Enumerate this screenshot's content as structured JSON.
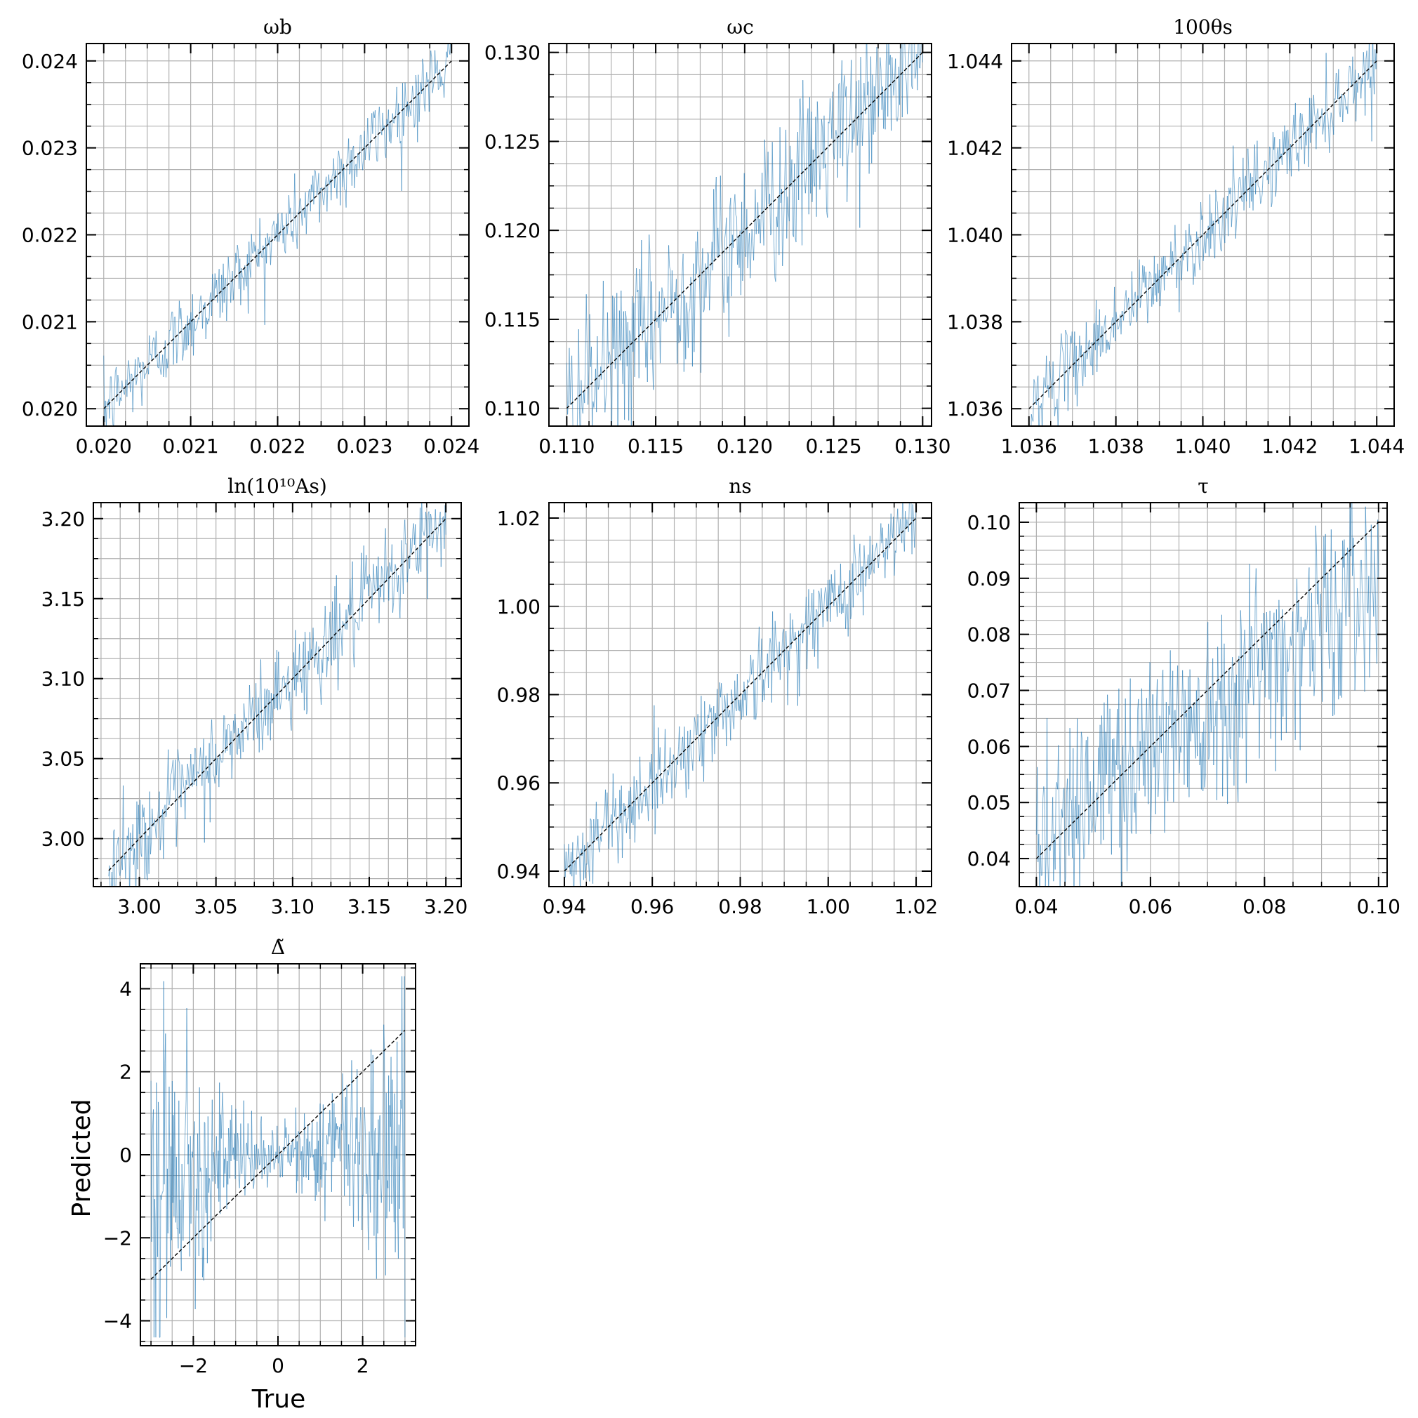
{
  "figure": {
    "xlabel": "True",
    "ylabel": "Predicted",
    "colors": {
      "series": "#1f77b4",
      "identity": "#000000",
      "grid": "#b0b0b0"
    }
  },
  "chart_data": [
    {
      "type": "scatter",
      "title": "ωb",
      "xlim": [
        0.0198,
        0.0242
      ],
      "ylim": [
        0.0198,
        0.0242
      ],
      "xticks": [
        "0.020",
        "0.021",
        "0.022",
        "0.023",
        "0.024"
      ],
      "yticks": [
        "0.020",
        "0.021",
        "0.022",
        "0.023",
        "0.024"
      ],
      "tick_values": [
        0.02,
        0.021,
        0.022,
        0.023,
        0.024
      ],
      "range": [
        0.02,
        0.024
      ],
      "scatter": 0.00022,
      "grid": true,
      "series": [
        {
          "name": "",
          "pattern": "noisy predictions about identity line"
        }
      ]
    },
    {
      "type": "scatter",
      "title": "ωc",
      "xlim": [
        0.109,
        0.1305
      ],
      "ylim": [
        0.109,
        0.1305
      ],
      "xticks": [
        "0.110",
        "0.115",
        "0.120",
        "0.125",
        "0.130"
      ],
      "yticks": [
        "0.110",
        "0.115",
        "0.120",
        "0.125",
        "0.130"
      ],
      "tick_values": [
        0.11,
        0.115,
        0.12,
        0.125,
        0.13
      ],
      "range": [
        0.11,
        0.13
      ],
      "scatter": 0.0022,
      "grid": true,
      "series": [
        {
          "name": "",
          "pattern": "noisy predictions about identity line"
        }
      ]
    },
    {
      "type": "scatter",
      "title": "100θs",
      "xlim": [
        1.0356,
        1.0444
      ],
      "ylim": [
        1.0356,
        1.0444
      ],
      "xticks": [
        "1.036",
        "1.038",
        "1.040",
        "1.042",
        "1.044"
      ],
      "yticks": [
        "1.036",
        "1.038",
        "1.040",
        "1.042",
        "1.044"
      ],
      "tick_values": [
        1.036,
        1.038,
        1.04,
        1.042,
        1.044
      ],
      "range": [
        1.036,
        1.044
      ],
      "scatter": 0.00045,
      "grid": true,
      "series": [
        {
          "name": "",
          "pattern": "noisy predictions about identity line"
        }
      ]
    },
    {
      "type": "scatter",
      "title": "ln(10¹⁰As)",
      "xlim": [
        2.97,
        3.21
      ],
      "ylim": [
        2.97,
        3.21
      ],
      "xticks": [
        "3.00",
        "3.05",
        "3.10",
        "3.15",
        "3.20"
      ],
      "yticks": [
        "3.00",
        "3.05",
        "3.10",
        "3.15",
        "3.20"
      ],
      "tick_values": [
        3.0,
        3.05,
        3.1,
        3.15,
        3.2
      ],
      "range": [
        2.98,
        3.2
      ],
      "scatter": 0.015,
      "grid": true,
      "series": [
        {
          "name": "",
          "pattern": "noisy predictions about identity line"
        }
      ]
    },
    {
      "type": "scatter",
      "title": "ns",
      "xlim": [
        0.9365,
        1.0235
      ],
      "ylim": [
        0.9365,
        1.0235
      ],
      "xticks": [
        "0.94",
        "0.96",
        "0.98",
        "1.00",
        "1.02"
      ],
      "yticks": [
        "0.94",
        "0.96",
        "0.98",
        "1.00",
        "1.02"
      ],
      "tick_values": [
        0.94,
        0.96,
        0.98,
        1.0,
        1.02
      ],
      "range": [
        0.94,
        1.02
      ],
      "scatter": 0.005,
      "grid": true,
      "series": [
        {
          "name": "",
          "pattern": "noisy predictions about identity line"
        }
      ]
    },
    {
      "type": "scatter",
      "title": "τ",
      "xlim": [
        0.037,
        0.1015
      ],
      "ylim": [
        0.035,
        0.1035
      ],
      "xticks": [
        "0.04",
        "0.06",
        "0.08",
        "0.10"
      ],
      "yticks": [
        "0.04",
        "0.05",
        "0.06",
        "0.07",
        "0.08",
        "0.09",
        "0.10"
      ],
      "xtick_values": [
        0.04,
        0.06,
        0.08,
        0.1
      ],
      "ytick_values": [
        0.04,
        0.05,
        0.06,
        0.07,
        0.08,
        0.09,
        0.1
      ],
      "range": [
        0.04,
        0.1
      ],
      "scatter": 0.009,
      "grid": true,
      "series": [
        {
          "name": "",
          "pattern": "predictions biased high at low τ, wide scatter"
        }
      ]
    },
    {
      "type": "scatter",
      "title": "Δ̃",
      "xlim": [
        -3.25,
        3.25
      ],
      "ylim": [
        -4.6,
        4.6
      ],
      "xticks": [
        "−2",
        "0",
        "2"
      ],
      "yticks": [
        "−4",
        "−2",
        "0",
        "2",
        "4"
      ],
      "xtick_values": [
        -2,
        0,
        2
      ],
      "ytick_values": [
        -4,
        -2,
        0,
        2,
        4
      ],
      "range": [
        -3,
        3
      ],
      "grid": true,
      "series": [
        {
          "name": "",
          "pattern": "predictions near 0 across range, spread growing with |True|"
        }
      ]
    }
  ]
}
